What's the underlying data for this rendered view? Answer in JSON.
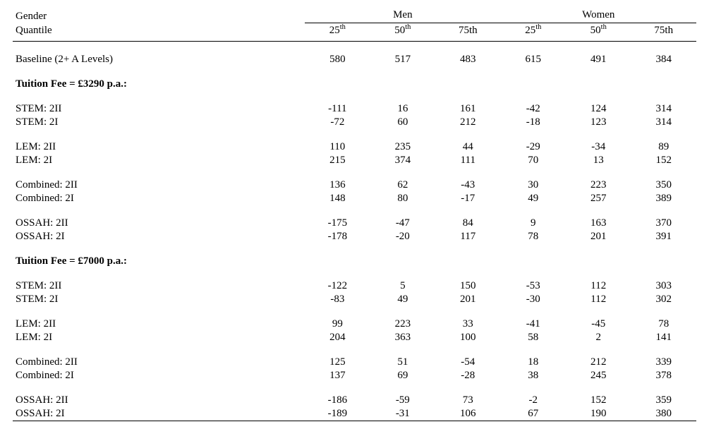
{
  "header": {
    "gender_label": "Gender",
    "quantile_label": "Quantile",
    "men_label": "Men",
    "women_label": "Women",
    "q25_html": "25<sup>th</sup>",
    "q50_html": "50<sup>th</sup>",
    "q75_label": "75th"
  },
  "sections": [
    {
      "heading": null,
      "rows": [
        {
          "label": "Baseline (2+ A Levels)",
          "values": [
            "580",
            "517",
            "483",
            "615",
            "491",
            "384"
          ]
        }
      ]
    },
    {
      "heading": "Tuition Fee = £3290 p.a.:",
      "groups": [
        [
          {
            "label": "STEM: 2II",
            "values": [
              "-111",
              "16",
              "161",
              "-42",
              "124",
              "314"
            ]
          },
          {
            "label": "STEM: 2I",
            "values": [
              "-72",
              "60",
              "212",
              "-18",
              "123",
              "314"
            ]
          }
        ],
        [
          {
            "label": "LEM: 2II",
            "values": [
              "110",
              "235",
              "44",
              "-29",
              "-34",
              "89"
            ]
          },
          {
            "label": "LEM: 2I",
            "values": [
              "215",
              "374",
              "111",
              "70",
              "13",
              "152"
            ]
          }
        ],
        [
          {
            "label": "Combined: 2II",
            "values": [
              "136",
              "62",
              "-43",
              "30",
              "223",
              "350"
            ]
          },
          {
            "label": "Combined: 2I",
            "values": [
              "148",
              "80",
              "-17",
              "49",
              "257",
              "389"
            ]
          }
        ],
        [
          {
            "label": "OSSAH: 2II",
            "values": [
              "-175",
              "-47",
              "84",
              "9",
              "163",
              "370"
            ]
          },
          {
            "label": "OSSAH: 2I",
            "values": [
              "-178",
              "-20",
              "117",
              "78",
              "201",
              "391"
            ]
          }
        ]
      ]
    },
    {
      "heading": "Tuition Fee = £7000 p.a.:",
      "groups": [
        [
          {
            "label": "STEM: 2II",
            "values": [
              "-122",
              "5",
              "150",
              "-53",
              "112",
              "303"
            ]
          },
          {
            "label": "STEM: 2I",
            "values": [
              "-83",
              "49",
              "201",
              "-30",
              "112",
              "302"
            ]
          }
        ],
        [
          {
            "label": "LEM: 2II",
            "values": [
              "99",
              "223",
              "33",
              "-41",
              "-45",
              "78"
            ]
          },
          {
            "label": "LEM: 2I",
            "values": [
              "204",
              "363",
              "100",
              "58",
              "2",
              "141"
            ]
          }
        ],
        [
          {
            "label": "Combined: 2II",
            "values": [
              "125",
              "51",
              "-54",
              "18",
              "212",
              "339"
            ]
          },
          {
            "label": "Combined: 2I",
            "values": [
              "137",
              "69",
              "-28",
              "38",
              "245",
              "378"
            ]
          }
        ],
        [
          {
            "label": "OSSAH: 2II",
            "values": [
              "-186",
              "-59",
              "73",
              "-2",
              "152",
              "359"
            ]
          },
          {
            "label": "OSSAH: 2I",
            "values": [
              "-189",
              "-31",
              "106",
              "67",
              "190",
              "380"
            ]
          }
        ]
      ]
    }
  ]
}
